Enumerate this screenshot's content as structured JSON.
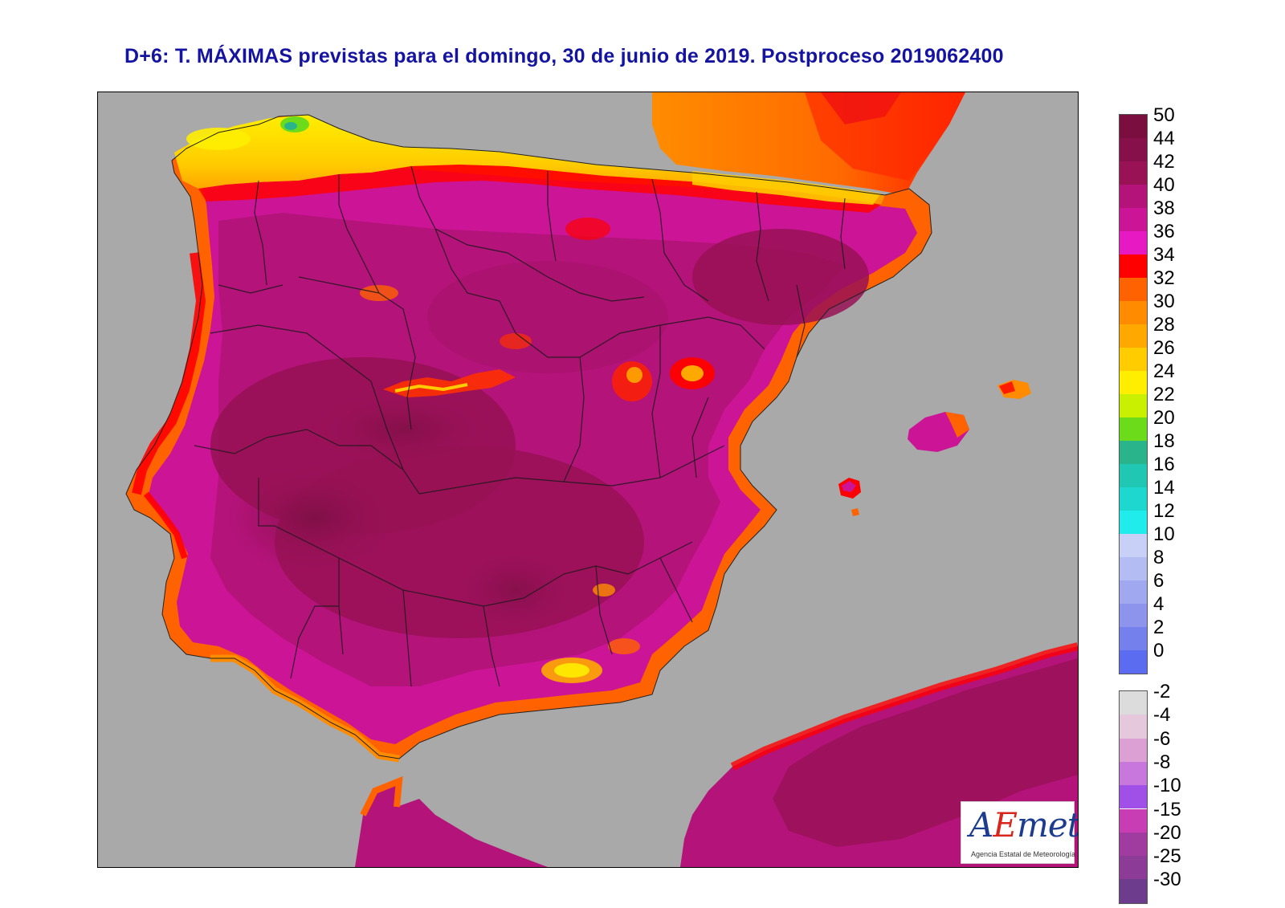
{
  "header": {
    "title": "D+6: T. MÁXIMAS previstas para el domingo, 30 de junio de 2019. Postproceso 2019062400"
  },
  "colors": {
    "sea": "#a9a9a9",
    "frame": "#000000",
    "title": "#1414a0"
  },
  "legend": {
    "positive": [
      {
        "label": "50",
        "color": "#7a0f3f"
      },
      {
        "label": "44",
        "color": "#86104a"
      },
      {
        "label": "42",
        "color": "#981255"
      },
      {
        "label": "40",
        "color": "#b4137a"
      },
      {
        "label": "38",
        "color": "#cc1497"
      },
      {
        "label": "36",
        "color": "#e619c2"
      },
      {
        "label": "34",
        "color": "#ff0000"
      },
      {
        "label": "32",
        "color": "#ff6200"
      },
      {
        "label": "30",
        "color": "#ff8c00"
      },
      {
        "label": "28",
        "color": "#ffa800"
      },
      {
        "label": "26",
        "color": "#ffcc00"
      },
      {
        "label": "24",
        "color": "#ffee00"
      },
      {
        "label": "22",
        "color": "#c8f000"
      },
      {
        "label": "20",
        "color": "#6cdc1a"
      },
      {
        "label": "18",
        "color": "#2ab48c"
      },
      {
        "label": "16",
        "color": "#20c8b4"
      },
      {
        "label": "14",
        "color": "#1ed8d0"
      },
      {
        "label": "12",
        "color": "#20ecec"
      },
      {
        "label": "10",
        "color": "#c8d0f8"
      },
      {
        "label": "8",
        "color": "#b4bcf4"
      },
      {
        "label": "6",
        "color": "#a0a8f0"
      },
      {
        "label": "4",
        "color": "#8c94ec"
      },
      {
        "label": "2",
        "color": "#7480ec"
      },
      {
        "label": "0",
        "color": "#5c6cf0"
      }
    ],
    "negative": [
      {
        "label": "-2",
        "color": "#dcdcdc"
      },
      {
        "label": "-4",
        "color": "#e6c8dc"
      },
      {
        "label": "-6",
        "color": "#dca0d4"
      },
      {
        "label": "-8",
        "color": "#c878dc"
      },
      {
        "label": "-10",
        "color": "#a050e6"
      },
      {
        "label": "-15",
        "color": "#c83cb4"
      },
      {
        "label": "-20",
        "color": "#a03ca0"
      },
      {
        "label": "-25",
        "color": "#8c3c96"
      },
      {
        "label": "-30",
        "color": "#6e3c8c"
      }
    ]
  },
  "logo": {
    "pre": "A",
    "accent": "E",
    "post": "met",
    "subtitle": "Agencia Estatal de Meteorología"
  }
}
